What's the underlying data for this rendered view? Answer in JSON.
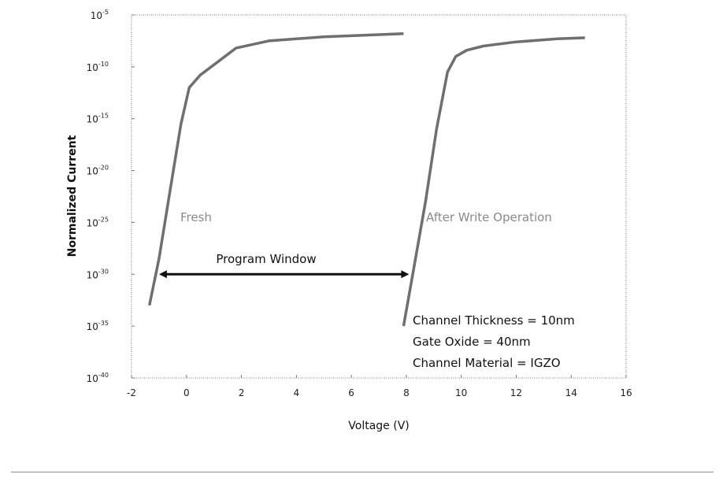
{
  "chart_data": {
    "type": "line",
    "xlabel": "Voltage (V)",
    "ylabel": "Normalized Current",
    "xlim": [
      -2,
      16
    ],
    "ylim_log10": [
      -40,
      -5
    ],
    "y_scale": "log",
    "x_ticks": [
      "-2",
      "0",
      "2",
      "4",
      "6",
      "8",
      "10",
      "12",
      "14",
      "16"
    ],
    "y_ticks": [
      {
        "base": "10",
        "exp": "-5"
      },
      {
        "base": "10",
        "exp": "-10"
      },
      {
        "base": "10",
        "exp": "-15"
      },
      {
        "base": "10",
        "exp": "-20"
      },
      {
        "base": "10",
        "exp": "-25"
      },
      {
        "base": "10",
        "exp": "-30"
      },
      {
        "base": "10",
        "exp": "-35"
      },
      {
        "base": "10",
        "exp": "-40"
      }
    ],
    "grid": false,
    "series": [
      {
        "name": "Fresh",
        "color": "#6f6f6f",
        "x": [
          -1.35,
          -1.0,
          -0.6,
          -0.2,
          0.1,
          0.5,
          1.0,
          1.8,
          3.0,
          5.0,
          7.0,
          7.9
        ],
        "log10_y": [
          -33.0,
          -28.5,
          -22.0,
          -15.5,
          -12.0,
          -10.8,
          -9.8,
          -8.2,
          -7.5,
          -7.1,
          -6.9,
          -6.8
        ]
      },
      {
        "name": "After Write Operation",
        "color": "#6f6f6f",
        "x": [
          7.9,
          8.3,
          8.7,
          9.1,
          9.5,
          9.8,
          10.2,
          10.8,
          12.0,
          13.5,
          14.5
        ],
        "log10_y": [
          -35.0,
          -29.0,
          -23.0,
          -16.0,
          -10.5,
          -9.0,
          -8.4,
          -8.0,
          -7.6,
          -7.3,
          -7.2
        ]
      }
    ],
    "labels": {
      "fresh": "Fresh",
      "after": "After Write Operation"
    },
    "annotations": {
      "program_window": {
        "text": "Program Window",
        "x_start": -1.0,
        "x_end": 8.1,
        "log10_y": -30.0
      },
      "notes": [
        "Channel Thickness = 10nm",
        "Gate Oxide = 40nm",
        "Channel Material = IGZO"
      ]
    }
  }
}
